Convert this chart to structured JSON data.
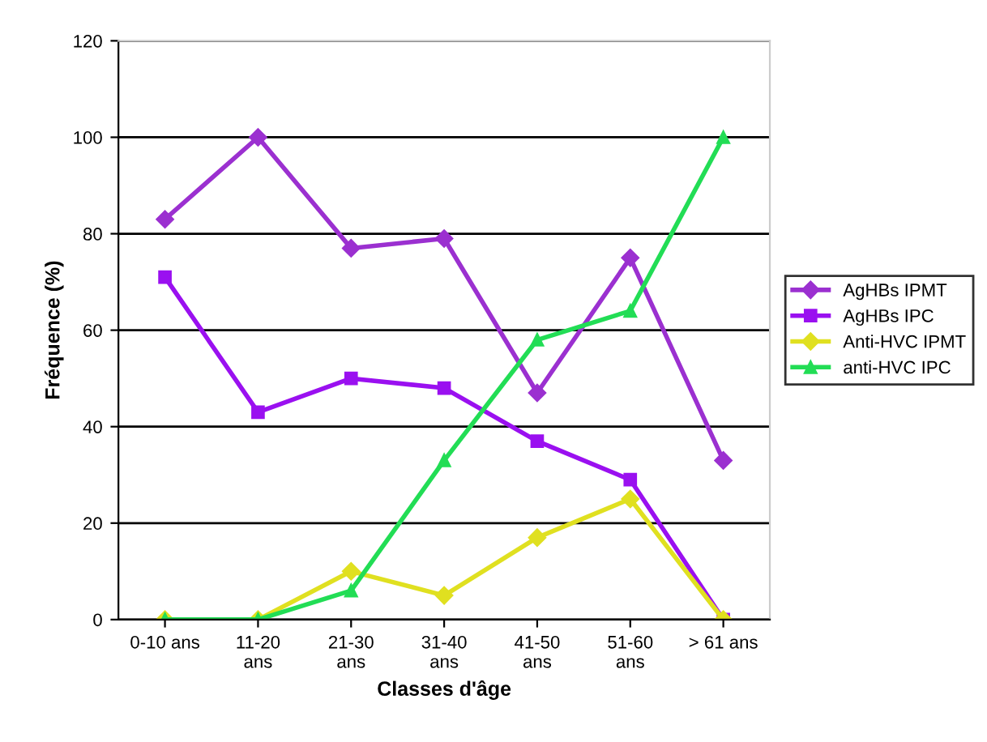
{
  "chart_data": {
    "type": "line",
    "xlabel": "Classes d'âge",
    "ylabel": "Fréquence (%)",
    "categories": [
      "0-10 ans",
      "11-20 ans",
      "21-30 ans",
      "31-40 ans",
      "41-50 ans",
      "51-60 ans",
      "> 61 ans"
    ],
    "series": [
      {
        "name": "AgHBs IPMT",
        "color": "#9b30d0",
        "marker": "diamond",
        "values": [
          83,
          100,
          77,
          79,
          47,
          75,
          33
        ]
      },
      {
        "name": "AgHBs IPC",
        "color": "#9a10f0",
        "marker": "square",
        "values": [
          71,
          43,
          50,
          48,
          37,
          29,
          0
        ]
      },
      {
        "name": "Anti-HVC IPMT",
        "color": "#e0e020",
        "marker": "diamond",
        "values": [
          0,
          0,
          10,
          5,
          17,
          25,
          0
        ]
      },
      {
        "name": "anti-HVC IPC",
        "color": "#22dd55",
        "marker": "triangle",
        "values": [
          0,
          0,
          6,
          33,
          58,
          64,
          100
        ]
      }
    ],
    "ylim": [
      0,
      120
    ],
    "yticks": [
      0,
      20,
      40,
      60,
      80,
      100,
      120
    ],
    "grid": "y",
    "legend": "right",
    "line_style": "solid"
  }
}
